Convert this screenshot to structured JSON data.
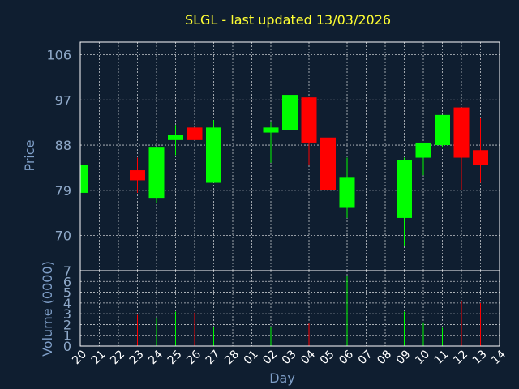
{
  "chart_data": [
    {
      "type": "candlestick",
      "title": "SLGL - last updated 13/03/2026",
      "ylabel": "Price",
      "xlabel": "Day",
      "ylim": [
        63,
        108.5
      ],
      "yticks": [
        70,
        79,
        88,
        97,
        106
      ],
      "colors": {
        "up": "#00ff00",
        "down": "#ff0000"
      },
      "categories": [
        "20",
        "21",
        "22",
        "23",
        "24",
        "25",
        "26",
        "27",
        "28",
        "01",
        "02",
        "03",
        "04",
        "05",
        "06",
        "07",
        "08",
        "09",
        "10",
        "11",
        "12",
        "13",
        "14"
      ],
      "candles": [
        {
          "day": "20",
          "open": 78.5,
          "close": 84,
          "high": 84,
          "low": 78.5
        },
        {
          "day": "23",
          "open": 83,
          "close": 81,
          "high": 85.5,
          "low": 78.5
        },
        {
          "day": "24",
          "open": 77.5,
          "close": 87.5,
          "high": 87.5,
          "low": 76.5
        },
        {
          "day": "25",
          "open": 89,
          "close": 90,
          "high": 92,
          "low": 86
        },
        {
          "day": "26",
          "open": 91.5,
          "close": 89,
          "high": 91.5,
          "low": 89
        },
        {
          "day": "27",
          "open": 80.5,
          "close": 91.5,
          "high": 93,
          "low": 80.5
        },
        {
          "day": "02",
          "open": 90.5,
          "close": 91.5,
          "high": 92.5,
          "low": 84.5
        },
        {
          "day": "03",
          "open": 91,
          "close": 98,
          "high": 98,
          "low": 81
        },
        {
          "day": "04",
          "open": 97.5,
          "close": 88.5,
          "high": 97.5,
          "low": 84
        },
        {
          "day": "05",
          "open": 89.5,
          "close": 79,
          "high": 89.5,
          "low": 71
        },
        {
          "day": "06",
          "open": 75.5,
          "close": 81.5,
          "high": 85.5,
          "low": 73.5
        },
        {
          "day": "09",
          "open": 73.5,
          "close": 85,
          "high": 85.5,
          "low": 68
        },
        {
          "day": "10",
          "open": 85.5,
          "close": 88.5,
          "high": 88.5,
          "low": 82
        },
        {
          "day": "11",
          "open": 88,
          "close": 94,
          "high": 94,
          "low": 87.5
        },
        {
          "day": "12",
          "open": 95.5,
          "close": 85.5,
          "high": 95.5,
          "low": 79
        },
        {
          "day": "13",
          "open": 87,
          "close": 84,
          "high": 93.5,
          "low": 80.5
        }
      ]
    },
    {
      "type": "bar",
      "ylabel": "Volume (0000)",
      "ylim": [
        0,
        7
      ],
      "yticks": [
        0,
        1,
        2,
        3,
        4,
        5,
        6,
        7
      ],
      "volumes": [
        {
          "day": "23",
          "value": 2.9,
          "direction": "down"
        },
        {
          "day": "24",
          "value": 2.6,
          "direction": "up"
        },
        {
          "day": "25",
          "value": 3.2,
          "direction": "up"
        },
        {
          "day": "26",
          "value": 3.1,
          "direction": "down"
        },
        {
          "day": "27",
          "value": 1.8,
          "direction": "up"
        },
        {
          "day": "02",
          "value": 1.8,
          "direction": "up"
        },
        {
          "day": "03",
          "value": 3.0,
          "direction": "up"
        },
        {
          "day": "04",
          "value": 2.1,
          "direction": "down"
        },
        {
          "day": "05",
          "value": 3.8,
          "direction": "down"
        },
        {
          "day": "06",
          "value": 6.5,
          "direction": "up"
        },
        {
          "day": "09",
          "value": 3.2,
          "direction": "up"
        },
        {
          "day": "10",
          "value": 2.2,
          "direction": "up"
        },
        {
          "day": "11",
          "value": 1.7,
          "direction": "up"
        },
        {
          "day": "12",
          "value": 4.2,
          "direction": "down"
        },
        {
          "day": "13",
          "value": 4.0,
          "direction": "down"
        }
      ]
    }
  ]
}
